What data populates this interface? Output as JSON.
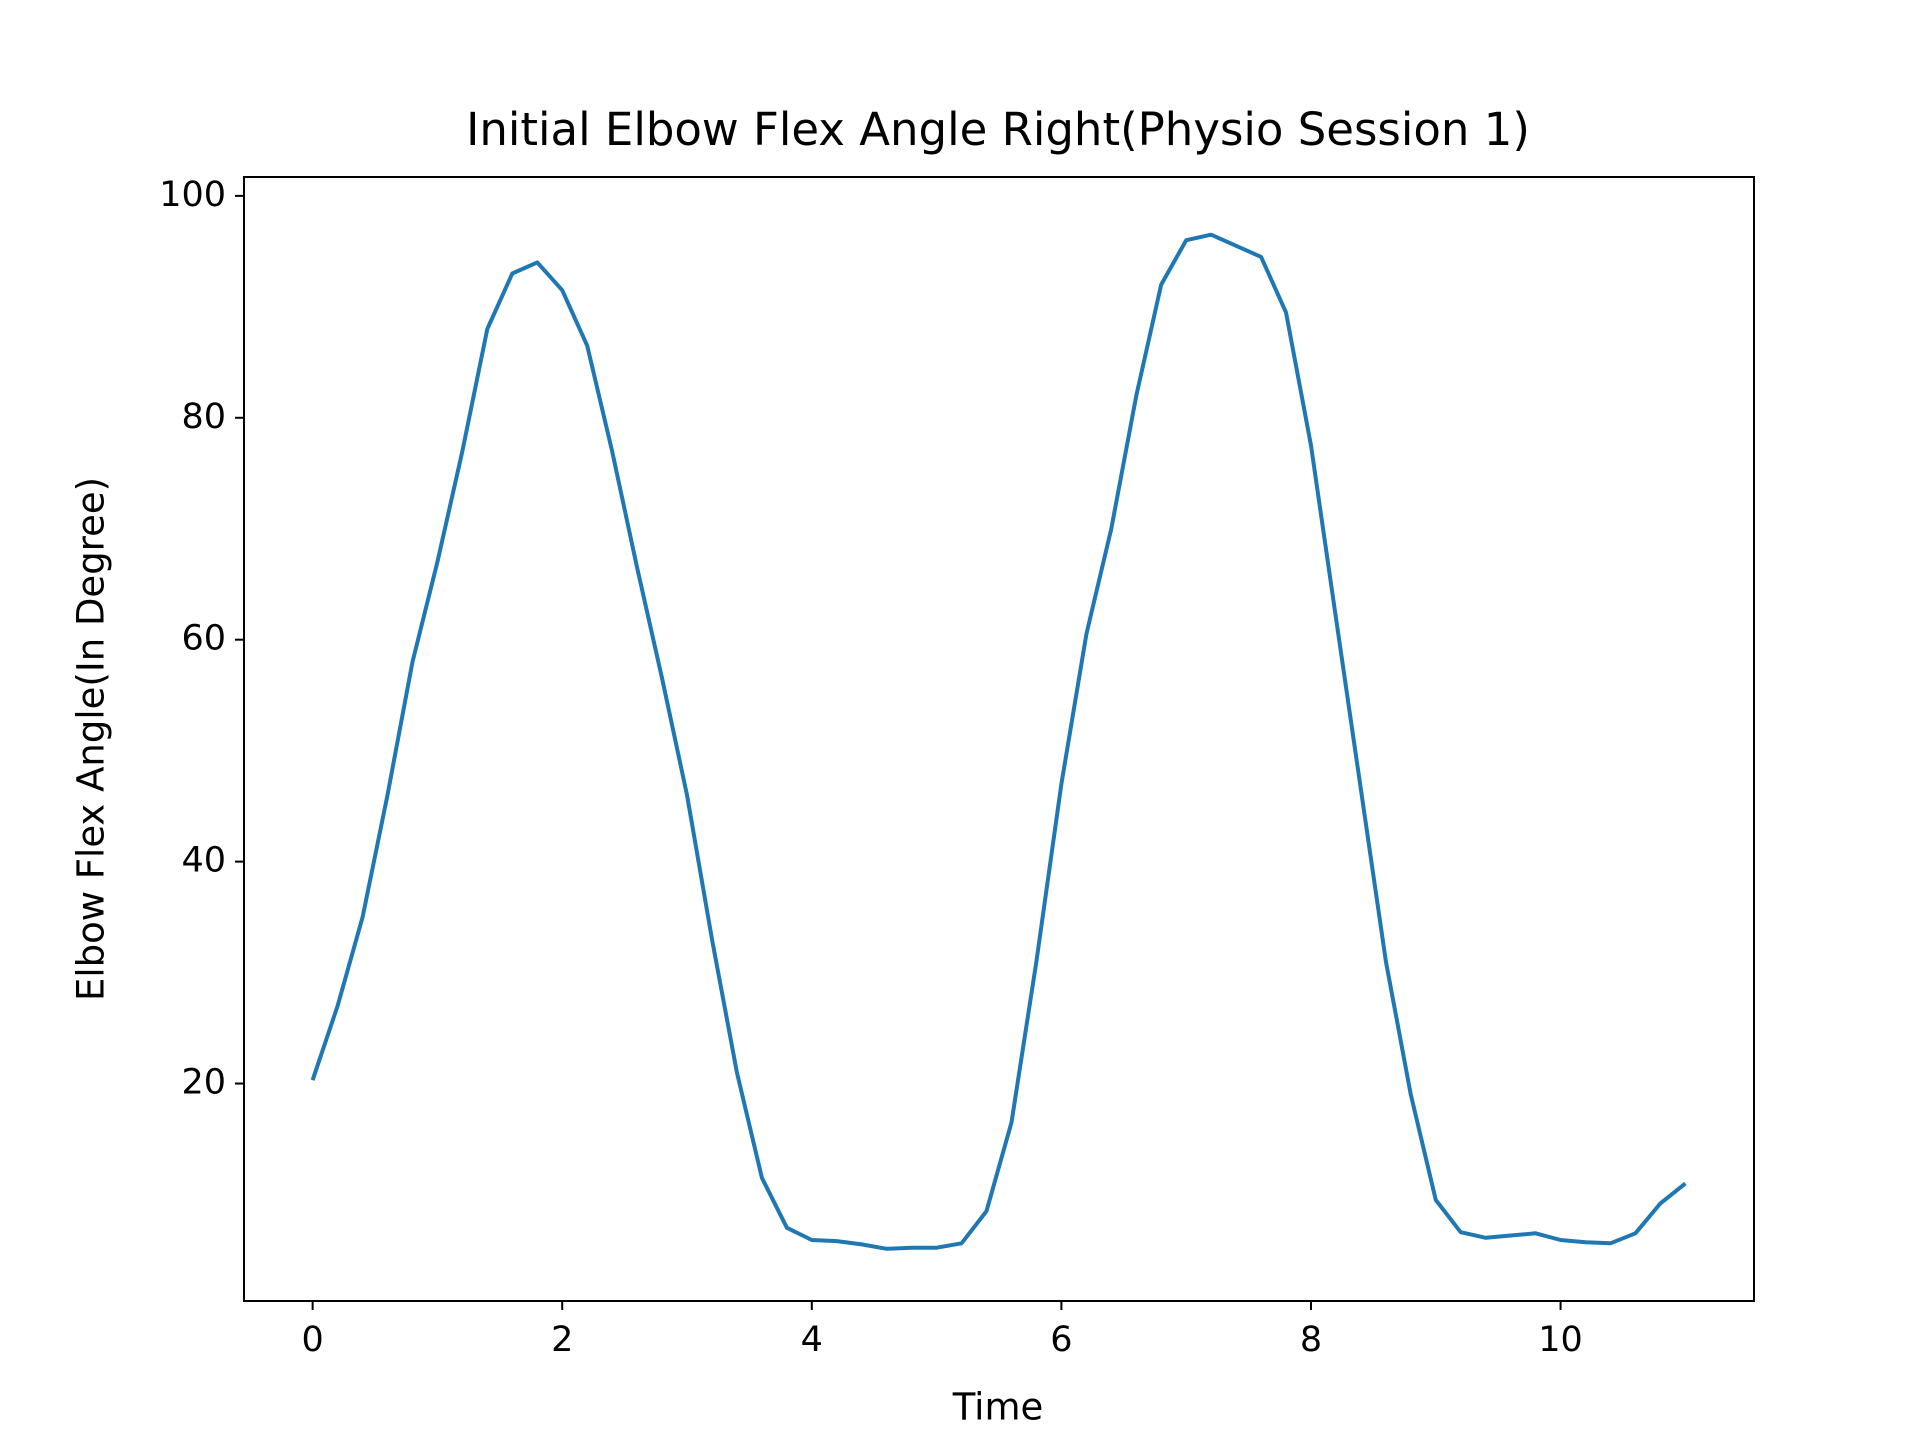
{
  "chart_data": {
    "type": "line",
    "title": "Initial Elbow Flex Angle Right(Physio Session 1)",
    "x_label": "Time",
    "y_label": "Elbow Flex Angle(In Degree)",
    "x": [
      0,
      0.2,
      0.4,
      0.6,
      0.8,
      1.0,
      1.2,
      1.4,
      1.6,
      1.8,
      2.0,
      2.2,
      2.4,
      2.6,
      2.8,
      3.0,
      3.2,
      3.4,
      3.6,
      3.8,
      4.0,
      4.2,
      4.4,
      4.6,
      4.8,
      5.0,
      5.2,
      5.4,
      5.6,
      5.8,
      6.0,
      6.2,
      6.4,
      6.6,
      6.8,
      7.0,
      7.2,
      7.4,
      7.6,
      7.8,
      8.0,
      8.2,
      8.4,
      8.6,
      8.8,
      9.0,
      9.2,
      9.4,
      9.6,
      9.8,
      10.0,
      10.2,
      10.4,
      10.6,
      10.8,
      11.0
    ],
    "series": [
      {
        "name": "Elbow Flex Angle",
        "color": "#1f77b4",
        "values": [
          20.3,
          27,
          35,
          46,
          58,
          67,
          77,
          88,
          93,
          94,
          91.5,
          86.5,
          77,
          66.5,
          56.5,
          46,
          33,
          21,
          11.5,
          7,
          5.9,
          5.8,
          5.5,
          5.1,
          5.2,
          5.2,
          5.6,
          8.5,
          16.5,
          31,
          47,
          60.5,
          70,
          82,
          92,
          96,
          96.5,
          95.5,
          94.5,
          89.5,
          77.5,
          62,
          46.5,
          31,
          19,
          9.5,
          6.6,
          6.1,
          6.3,
          6.5,
          5.9,
          5.7,
          5.6,
          6.5,
          9.2,
          11
        ]
      }
    ],
    "xlim": [
      -0.55,
      11.55
    ],
    "ylim": [
      0.4,
      101.7
    ],
    "xticks": [
      0,
      2,
      4,
      6,
      8,
      10
    ],
    "yticks": [
      20,
      40,
      60,
      80,
      100
    ]
  }
}
